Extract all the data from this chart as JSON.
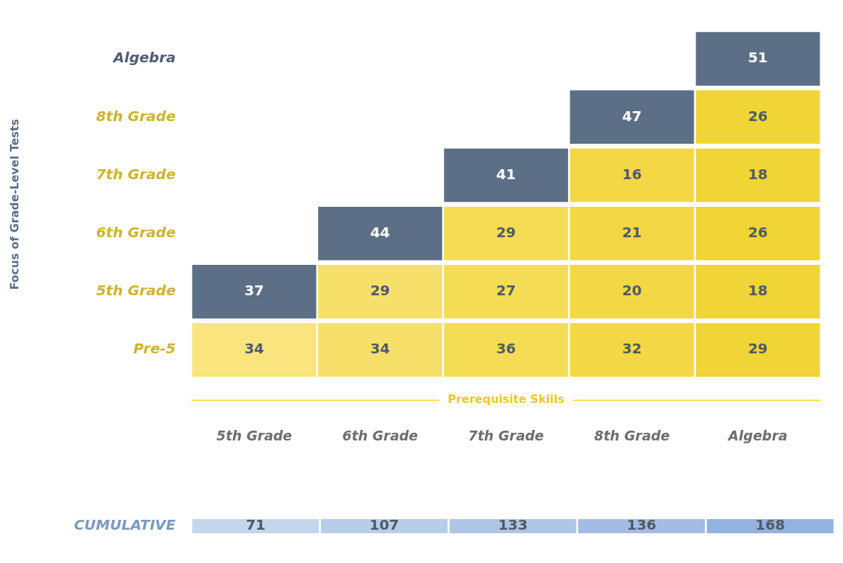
{
  "chart_data": [
    {
      "type": "heatmap",
      "ylabel": "Focus of Grade-Level Tests",
      "xlabel": "Prerequisite Skills",
      "data_labels": true,
      "categories": [
        "5th Grade",
        "6th Grade",
        "7th Grade",
        "8th Grade",
        "Algebra"
      ],
      "y_categories": [
        "Algebra",
        "8th Grade",
        "7th Grade",
        "6th Grade",
        "5th Grade",
        "Pre-5"
      ],
      "cells": [
        [
          null,
          null,
          null,
          null,
          51
        ],
        [
          null,
          null,
          null,
          47,
          26
        ],
        [
          null,
          null,
          41,
          16,
          18
        ],
        [
          null,
          44,
          29,
          21,
          26
        ],
        [
          37,
          29,
          27,
          20,
          18
        ],
        [
          34,
          34,
          36,
          32,
          29
        ]
      ],
      "colors": [
        [
          null,
          null,
          null,
          null,
          "#5d6f86"
        ],
        [
          null,
          null,
          null,
          "#5d6f86",
          "#f1d435"
        ],
        [
          null,
          null,
          "#5d6f86",
          "#f3d744",
          "#f1d435"
        ],
        [
          null,
          "#5d6f86",
          "#f5dc55",
          "#f3d744",
          "#f1d435"
        ],
        [
          "#5d6f86",
          "#f7e06a",
          "#f5dc55",
          "#f3d744",
          "#f1d435"
        ],
        [
          "#f9e47d",
          "#f7e06a",
          "#f5dc55",
          "#f3d744",
          "#f1d435"
        ]
      ]
    },
    {
      "type": "heatmap",
      "tick_labels": "y",
      "data_labels": true,
      "categories": [
        null,
        null,
        null,
        null,
        null
      ],
      "y_categories": [
        "CUMULATIVE"
      ],
      "cells": [
        [
          71,
          107,
          133,
          136,
          168
        ]
      ],
      "colors": [
        [
          "#c2d6ec",
          "#b7cee9",
          "#adc6e5",
          "#a3bde2",
          "#93b3de"
        ]
      ]
    }
  ]
}
